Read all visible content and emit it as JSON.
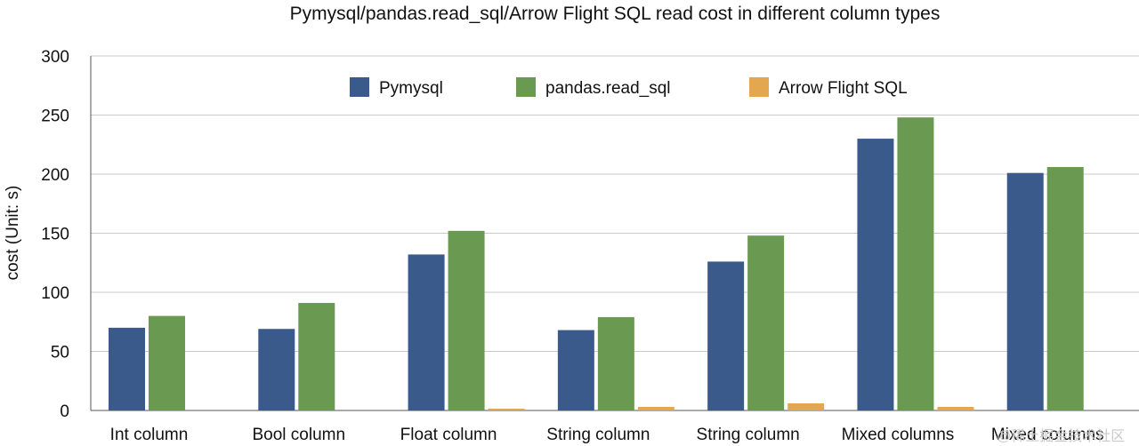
{
  "chart_data": {
    "type": "bar",
    "title": "Pymysql/pandas.read_sql/Arrow Flight SQL read cost in different column types",
    "ylabel": "cost (Unit: s)",
    "xlabel": "",
    "ylim": [
      0,
      300
    ],
    "yticks": [
      0,
      50,
      100,
      150,
      200,
      250,
      300
    ],
    "grid": true,
    "legend_position": "top-center",
    "categories": [
      "Int column",
      "Bool column",
      "Float column",
      "String column",
      "String column",
      "Mixed columns",
      "Mixed columns"
    ],
    "series": [
      {
        "name": "Pymysql",
        "color": "#3a5a8c",
        "values": [
          70,
          69,
          132,
          68,
          126,
          230,
          201
        ]
      },
      {
        "name": "pandas.read_sql",
        "color": "#6a9a51",
        "values": [
          80,
          91,
          152,
          79,
          148,
          248,
          206
        ]
      },
      {
        "name": "Arrow Flight SQL",
        "color": "#e3a84f",
        "values": [
          0,
          0,
          1.5,
          3,
          6,
          3,
          0
        ]
      }
    ]
  },
  "watermark": "@稀土掘金技术社区"
}
